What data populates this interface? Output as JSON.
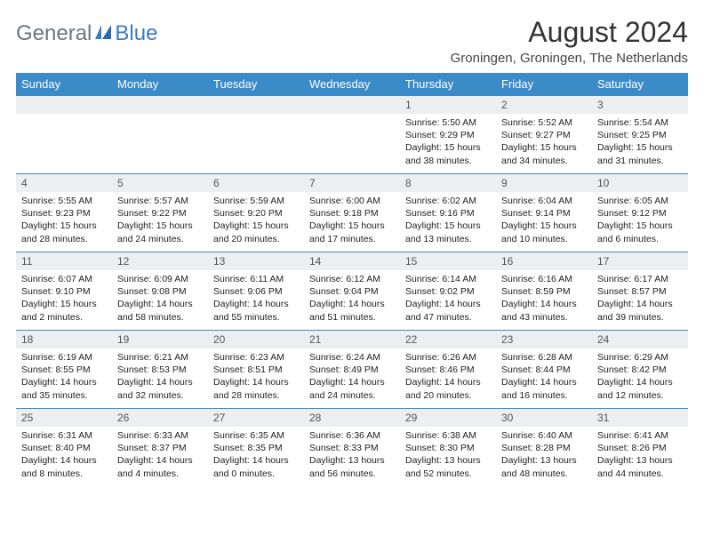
{
  "logo": {
    "general": "General",
    "blue": "Blue"
  },
  "title": "August 2024",
  "location": "Groningen, Groningen, The Netherlands",
  "colors": {
    "header_bg": "#3b8bc9",
    "header_text": "#ffffff",
    "daynum_bg": "#eceef0",
    "border": "#3b8bc9",
    "logo_general": "#6c757d",
    "logo_blue": "#3b7bbf"
  },
  "days_of_week": [
    "Sunday",
    "Monday",
    "Tuesday",
    "Wednesday",
    "Thursday",
    "Friday",
    "Saturday"
  ],
  "weeks": [
    [
      null,
      null,
      null,
      null,
      {
        "n": "1",
        "sr": "Sunrise: 5:50 AM",
        "ss": "Sunset: 9:29 PM",
        "dl1": "Daylight: 15 hours",
        "dl2": "and 38 minutes."
      },
      {
        "n": "2",
        "sr": "Sunrise: 5:52 AM",
        "ss": "Sunset: 9:27 PM",
        "dl1": "Daylight: 15 hours",
        "dl2": "and 34 minutes."
      },
      {
        "n": "3",
        "sr": "Sunrise: 5:54 AM",
        "ss": "Sunset: 9:25 PM",
        "dl1": "Daylight: 15 hours",
        "dl2": "and 31 minutes."
      }
    ],
    [
      {
        "n": "4",
        "sr": "Sunrise: 5:55 AM",
        "ss": "Sunset: 9:23 PM",
        "dl1": "Daylight: 15 hours",
        "dl2": "and 28 minutes."
      },
      {
        "n": "5",
        "sr": "Sunrise: 5:57 AM",
        "ss": "Sunset: 9:22 PM",
        "dl1": "Daylight: 15 hours",
        "dl2": "and 24 minutes."
      },
      {
        "n": "6",
        "sr": "Sunrise: 5:59 AM",
        "ss": "Sunset: 9:20 PM",
        "dl1": "Daylight: 15 hours",
        "dl2": "and 20 minutes."
      },
      {
        "n": "7",
        "sr": "Sunrise: 6:00 AM",
        "ss": "Sunset: 9:18 PM",
        "dl1": "Daylight: 15 hours",
        "dl2": "and 17 minutes."
      },
      {
        "n": "8",
        "sr": "Sunrise: 6:02 AM",
        "ss": "Sunset: 9:16 PM",
        "dl1": "Daylight: 15 hours",
        "dl2": "and 13 minutes."
      },
      {
        "n": "9",
        "sr": "Sunrise: 6:04 AM",
        "ss": "Sunset: 9:14 PM",
        "dl1": "Daylight: 15 hours",
        "dl2": "and 10 minutes."
      },
      {
        "n": "10",
        "sr": "Sunrise: 6:05 AM",
        "ss": "Sunset: 9:12 PM",
        "dl1": "Daylight: 15 hours",
        "dl2": "and 6 minutes."
      }
    ],
    [
      {
        "n": "11",
        "sr": "Sunrise: 6:07 AM",
        "ss": "Sunset: 9:10 PM",
        "dl1": "Daylight: 15 hours",
        "dl2": "and 2 minutes."
      },
      {
        "n": "12",
        "sr": "Sunrise: 6:09 AM",
        "ss": "Sunset: 9:08 PM",
        "dl1": "Daylight: 14 hours",
        "dl2": "and 58 minutes."
      },
      {
        "n": "13",
        "sr": "Sunrise: 6:11 AM",
        "ss": "Sunset: 9:06 PM",
        "dl1": "Daylight: 14 hours",
        "dl2": "and 55 minutes."
      },
      {
        "n": "14",
        "sr": "Sunrise: 6:12 AM",
        "ss": "Sunset: 9:04 PM",
        "dl1": "Daylight: 14 hours",
        "dl2": "and 51 minutes."
      },
      {
        "n": "15",
        "sr": "Sunrise: 6:14 AM",
        "ss": "Sunset: 9:02 PM",
        "dl1": "Daylight: 14 hours",
        "dl2": "and 47 minutes."
      },
      {
        "n": "16",
        "sr": "Sunrise: 6:16 AM",
        "ss": "Sunset: 8:59 PM",
        "dl1": "Daylight: 14 hours",
        "dl2": "and 43 minutes."
      },
      {
        "n": "17",
        "sr": "Sunrise: 6:17 AM",
        "ss": "Sunset: 8:57 PM",
        "dl1": "Daylight: 14 hours",
        "dl2": "and 39 minutes."
      }
    ],
    [
      {
        "n": "18",
        "sr": "Sunrise: 6:19 AM",
        "ss": "Sunset: 8:55 PM",
        "dl1": "Daylight: 14 hours",
        "dl2": "and 35 minutes."
      },
      {
        "n": "19",
        "sr": "Sunrise: 6:21 AM",
        "ss": "Sunset: 8:53 PM",
        "dl1": "Daylight: 14 hours",
        "dl2": "and 32 minutes."
      },
      {
        "n": "20",
        "sr": "Sunrise: 6:23 AM",
        "ss": "Sunset: 8:51 PM",
        "dl1": "Daylight: 14 hours",
        "dl2": "and 28 minutes."
      },
      {
        "n": "21",
        "sr": "Sunrise: 6:24 AM",
        "ss": "Sunset: 8:49 PM",
        "dl1": "Daylight: 14 hours",
        "dl2": "and 24 minutes."
      },
      {
        "n": "22",
        "sr": "Sunrise: 6:26 AM",
        "ss": "Sunset: 8:46 PM",
        "dl1": "Daylight: 14 hours",
        "dl2": "and 20 minutes."
      },
      {
        "n": "23",
        "sr": "Sunrise: 6:28 AM",
        "ss": "Sunset: 8:44 PM",
        "dl1": "Daylight: 14 hours",
        "dl2": "and 16 minutes."
      },
      {
        "n": "24",
        "sr": "Sunrise: 6:29 AM",
        "ss": "Sunset: 8:42 PM",
        "dl1": "Daylight: 14 hours",
        "dl2": "and 12 minutes."
      }
    ],
    [
      {
        "n": "25",
        "sr": "Sunrise: 6:31 AM",
        "ss": "Sunset: 8:40 PM",
        "dl1": "Daylight: 14 hours",
        "dl2": "and 8 minutes."
      },
      {
        "n": "26",
        "sr": "Sunrise: 6:33 AM",
        "ss": "Sunset: 8:37 PM",
        "dl1": "Daylight: 14 hours",
        "dl2": "and 4 minutes."
      },
      {
        "n": "27",
        "sr": "Sunrise: 6:35 AM",
        "ss": "Sunset: 8:35 PM",
        "dl1": "Daylight: 14 hours",
        "dl2": "and 0 minutes."
      },
      {
        "n": "28",
        "sr": "Sunrise: 6:36 AM",
        "ss": "Sunset: 8:33 PM",
        "dl1": "Daylight: 13 hours",
        "dl2": "and 56 minutes."
      },
      {
        "n": "29",
        "sr": "Sunrise: 6:38 AM",
        "ss": "Sunset: 8:30 PM",
        "dl1": "Daylight: 13 hours",
        "dl2": "and 52 minutes."
      },
      {
        "n": "30",
        "sr": "Sunrise: 6:40 AM",
        "ss": "Sunset: 8:28 PM",
        "dl1": "Daylight: 13 hours",
        "dl2": "and 48 minutes."
      },
      {
        "n": "31",
        "sr": "Sunrise: 6:41 AM",
        "ss": "Sunset: 8:26 PM",
        "dl1": "Daylight: 13 hours",
        "dl2": "and 44 minutes."
      }
    ]
  ]
}
